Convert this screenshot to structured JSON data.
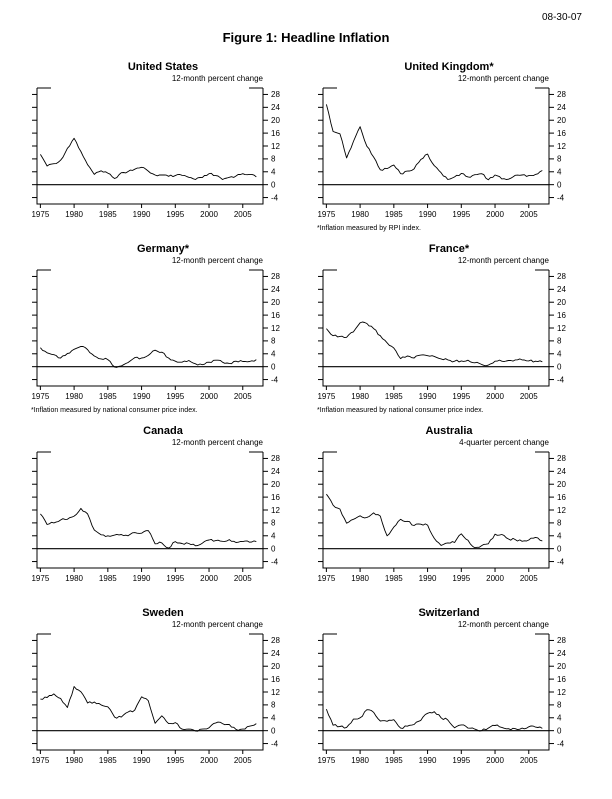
{
  "page": {
    "date_stamp": "08-30-07",
    "title": "Figure 1: Headline Inflation"
  },
  "chart_data": {
    "type": "line",
    "title": "Figure 1: Headline Inflation",
    "xlabel": "",
    "ylabel": "",
    "ylim": [
      -4,
      28
    ],
    "grid": false,
    "legend_position": "none",
    "y_ticks": [
      28,
      24,
      20,
      16,
      12,
      8,
      4,
      0,
      -4
    ],
    "x_ticks": [
      1975,
      1980,
      1985,
      1990,
      1995,
      2000,
      2005
    ],
    "x": [
      1975,
      1976,
      1977,
      1978,
      1979,
      1980,
      1981,
      1982,
      1983,
      1984,
      1985,
      1986,
      1987,
      1988,
      1989,
      1990,
      1991,
      1992,
      1993,
      1994,
      1995,
      1996,
      1997,
      1998,
      1999,
      2000,
      2001,
      2002,
      2003,
      2004,
      2005,
      2006,
      2007
    ],
    "series": [
      {
        "name": "United States",
        "unit_label": "12-month percent change",
        "footnote": "",
        "values": [
          9.4,
          5.8,
          6.5,
          7.6,
          11.3,
          14.4,
          10.3,
          6.2,
          3.2,
          4.3,
          3.6,
          1.9,
          3.7,
          4.1,
          4.8,
          5.4,
          4.2,
          3.0,
          3.0,
          2.6,
          2.8,
          2.9,
          2.3,
          1.6,
          2.2,
          3.4,
          2.8,
          1.6,
          2.3,
          2.7,
          3.4,
          3.2,
          2.4
        ]
      },
      {
        "name": "United Kingdom*",
        "unit_label": "12-month percent change",
        "footnote": "*Inflation measured by RPI index.",
        "values": [
          24.9,
          16.5,
          15.8,
          8.3,
          13.4,
          18.0,
          11.9,
          8.6,
          4.6,
          5.0,
          6.1,
          3.4,
          4.2,
          4.9,
          7.8,
          9.5,
          5.9,
          3.7,
          1.6,
          2.4,
          3.5,
          2.4,
          3.1,
          3.4,
          1.5,
          3.0,
          1.8,
          1.7,
          2.9,
          3.0,
          2.8,
          3.2,
          4.4
        ]
      },
      {
        "name": "Germany*",
        "unit_label": "12-month percent change",
        "footnote": "*Inflation measured by national consumer price index.",
        "values": [
          5.9,
          4.3,
          3.7,
          2.7,
          4.1,
          5.4,
          6.3,
          5.3,
          3.3,
          2.4,
          2.2,
          -0.1,
          0.2,
          1.3,
          2.8,
          2.7,
          3.5,
          5.1,
          4.5,
          2.7,
          1.7,
          1.4,
          1.9,
          0.9,
          0.6,
          1.4,
          2.0,
          1.4,
          1.0,
          1.7,
          1.6,
          1.6,
          2.2
        ]
      },
      {
        "name": "France*",
        "unit_label": "12-month percent change",
        "footnote": "*Inflation measured by national consumer price index.",
        "values": [
          11.8,
          9.6,
          9.4,
          9.1,
          10.8,
          13.6,
          13.4,
          11.8,
          9.6,
          7.4,
          5.8,
          2.5,
          3.3,
          2.7,
          3.6,
          3.4,
          3.2,
          2.4,
          2.1,
          1.7,
          1.8,
          2.0,
          1.2,
          0.7,
          0.5,
          1.7,
          1.7,
          1.9,
          2.1,
          2.1,
          1.8,
          1.7,
          1.5
        ]
      },
      {
        "name": "Canada",
        "unit_label": "12-month percent change",
        "footnote": "",
        "values": [
          10.8,
          7.5,
          8.0,
          8.9,
          9.1,
          10.1,
          12.5,
          10.8,
          5.8,
          4.3,
          4.0,
          4.2,
          4.4,
          4.0,
          5.0,
          4.8,
          5.6,
          1.5,
          1.8,
          0.2,
          2.2,
          1.6,
          1.6,
          0.9,
          1.7,
          2.7,
          2.5,
          2.3,
          2.8,
          1.9,
          2.2,
          2.0,
          2.2
        ]
      },
      {
        "name": "Australia",
        "unit_label": "4-quarter percent change",
        "footnote": "",
        "values": [
          16.9,
          13.5,
          12.3,
          7.9,
          9.1,
          10.2,
          9.7,
          11.1,
          10.1,
          4.0,
          6.7,
          9.1,
          8.5,
          7.2,
          7.6,
          7.3,
          3.2,
          1.0,
          1.8,
          1.9,
          4.6,
          2.6,
          0.3,
          0.9,
          1.5,
          4.5,
          4.4,
          3.0,
          2.8,
          2.3,
          2.7,
          3.5,
          2.4
        ]
      },
      {
        "name": "Sweden",
        "unit_label": "12-month percent change",
        "footnote": "",
        "values": [
          9.8,
          10.3,
          11.4,
          10.0,
          7.2,
          13.7,
          12.1,
          8.6,
          8.9,
          8.0,
          7.4,
          4.2,
          4.2,
          5.8,
          6.4,
          10.5,
          9.3,
          2.3,
          4.6,
          2.2,
          2.5,
          0.5,
          0.5,
          -0.1,
          0.5,
          0.9,
          2.4,
          2.2,
          1.9,
          0.4,
          0.5,
          1.4,
          2.2
        ]
      },
      {
        "name": "Switzerland",
        "unit_label": "12-month percent change",
        "footnote": "",
        "values": [
          6.7,
          1.7,
          1.3,
          1.0,
          3.6,
          4.0,
          6.5,
          5.7,
          3.0,
          2.9,
          3.4,
          0.8,
          1.4,
          1.9,
          3.2,
          5.4,
          5.9,
          4.0,
          3.3,
          0.9,
          1.8,
          0.8,
          0.5,
          0.0,
          0.8,
          1.6,
          1.0,
          0.6,
          0.6,
          0.8,
          1.2,
          1.1,
          0.7
        ]
      }
    ]
  }
}
